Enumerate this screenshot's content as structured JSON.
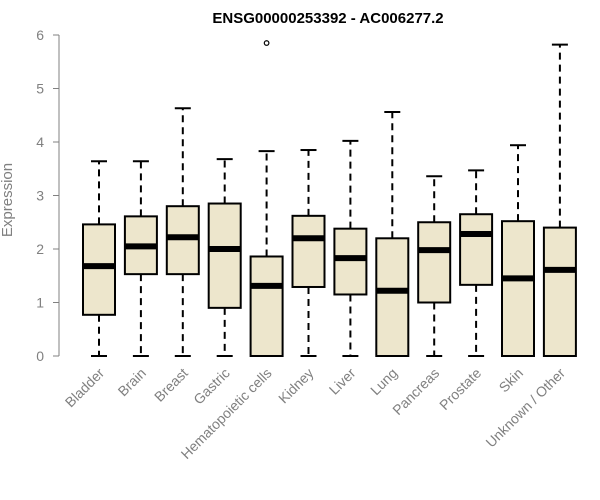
{
  "chart_data": {
    "type": "boxplot",
    "title": "ENSG00000253392 - AC006277.2",
    "xlabel": "",
    "ylabel": "Expression",
    "ylim": [
      0,
      6
    ],
    "yticks": [
      "0",
      "1",
      "2",
      "3",
      "4",
      "5",
      "6"
    ],
    "grid": false,
    "legend": "none",
    "box_fill": "#ede6cc",
    "box_stroke": "#000000",
    "categories": [
      "Bladder",
      "Brain",
      "Breast",
      "Gastric",
      "Hematopoietic cells",
      "Kidney",
      "Liver",
      "Lung",
      "Pancreas",
      "Prostate",
      "Skin",
      "Unknown / Other"
    ],
    "boxes": [
      {
        "min": 0,
        "q1": 0.77,
        "median": 1.68,
        "q3": 2.46,
        "max": 3.64,
        "outliers": []
      },
      {
        "min": 0,
        "q1": 1.53,
        "median": 2.05,
        "q3": 2.61,
        "max": 3.64,
        "outliers": []
      },
      {
        "min": 0,
        "q1": 1.53,
        "median": 2.22,
        "q3": 2.8,
        "max": 4.63,
        "outliers": []
      },
      {
        "min": 0,
        "q1": 0.9,
        "median": 2.0,
        "q3": 2.85,
        "max": 3.68,
        "outliers": []
      },
      {
        "min": 0,
        "q1": 0,
        "median": 1.31,
        "q3": 1.86,
        "max": 3.83,
        "outliers": [
          5.85
        ]
      },
      {
        "min": 0,
        "q1": 1.29,
        "median": 2.2,
        "q3": 2.62,
        "max": 3.85,
        "outliers": []
      },
      {
        "min": 0,
        "q1": 1.15,
        "median": 1.83,
        "q3": 2.38,
        "max": 4.02,
        "outliers": []
      },
      {
        "min": 0,
        "q1": 0,
        "median": 1.22,
        "q3": 2.2,
        "max": 4.56,
        "outliers": []
      },
      {
        "min": 0,
        "q1": 1.0,
        "median": 1.98,
        "q3": 2.5,
        "max": 3.36,
        "outliers": []
      },
      {
        "min": 0,
        "q1": 1.33,
        "median": 2.28,
        "q3": 2.65,
        "max": 3.47,
        "outliers": []
      },
      {
        "min": 0,
        "q1": 0,
        "median": 1.45,
        "q3": 2.52,
        "max": 3.94,
        "outliers": []
      },
      {
        "min": 0,
        "q1": 0,
        "median": 1.61,
        "q3": 2.4,
        "max": 5.82,
        "outliers": []
      }
    ]
  }
}
